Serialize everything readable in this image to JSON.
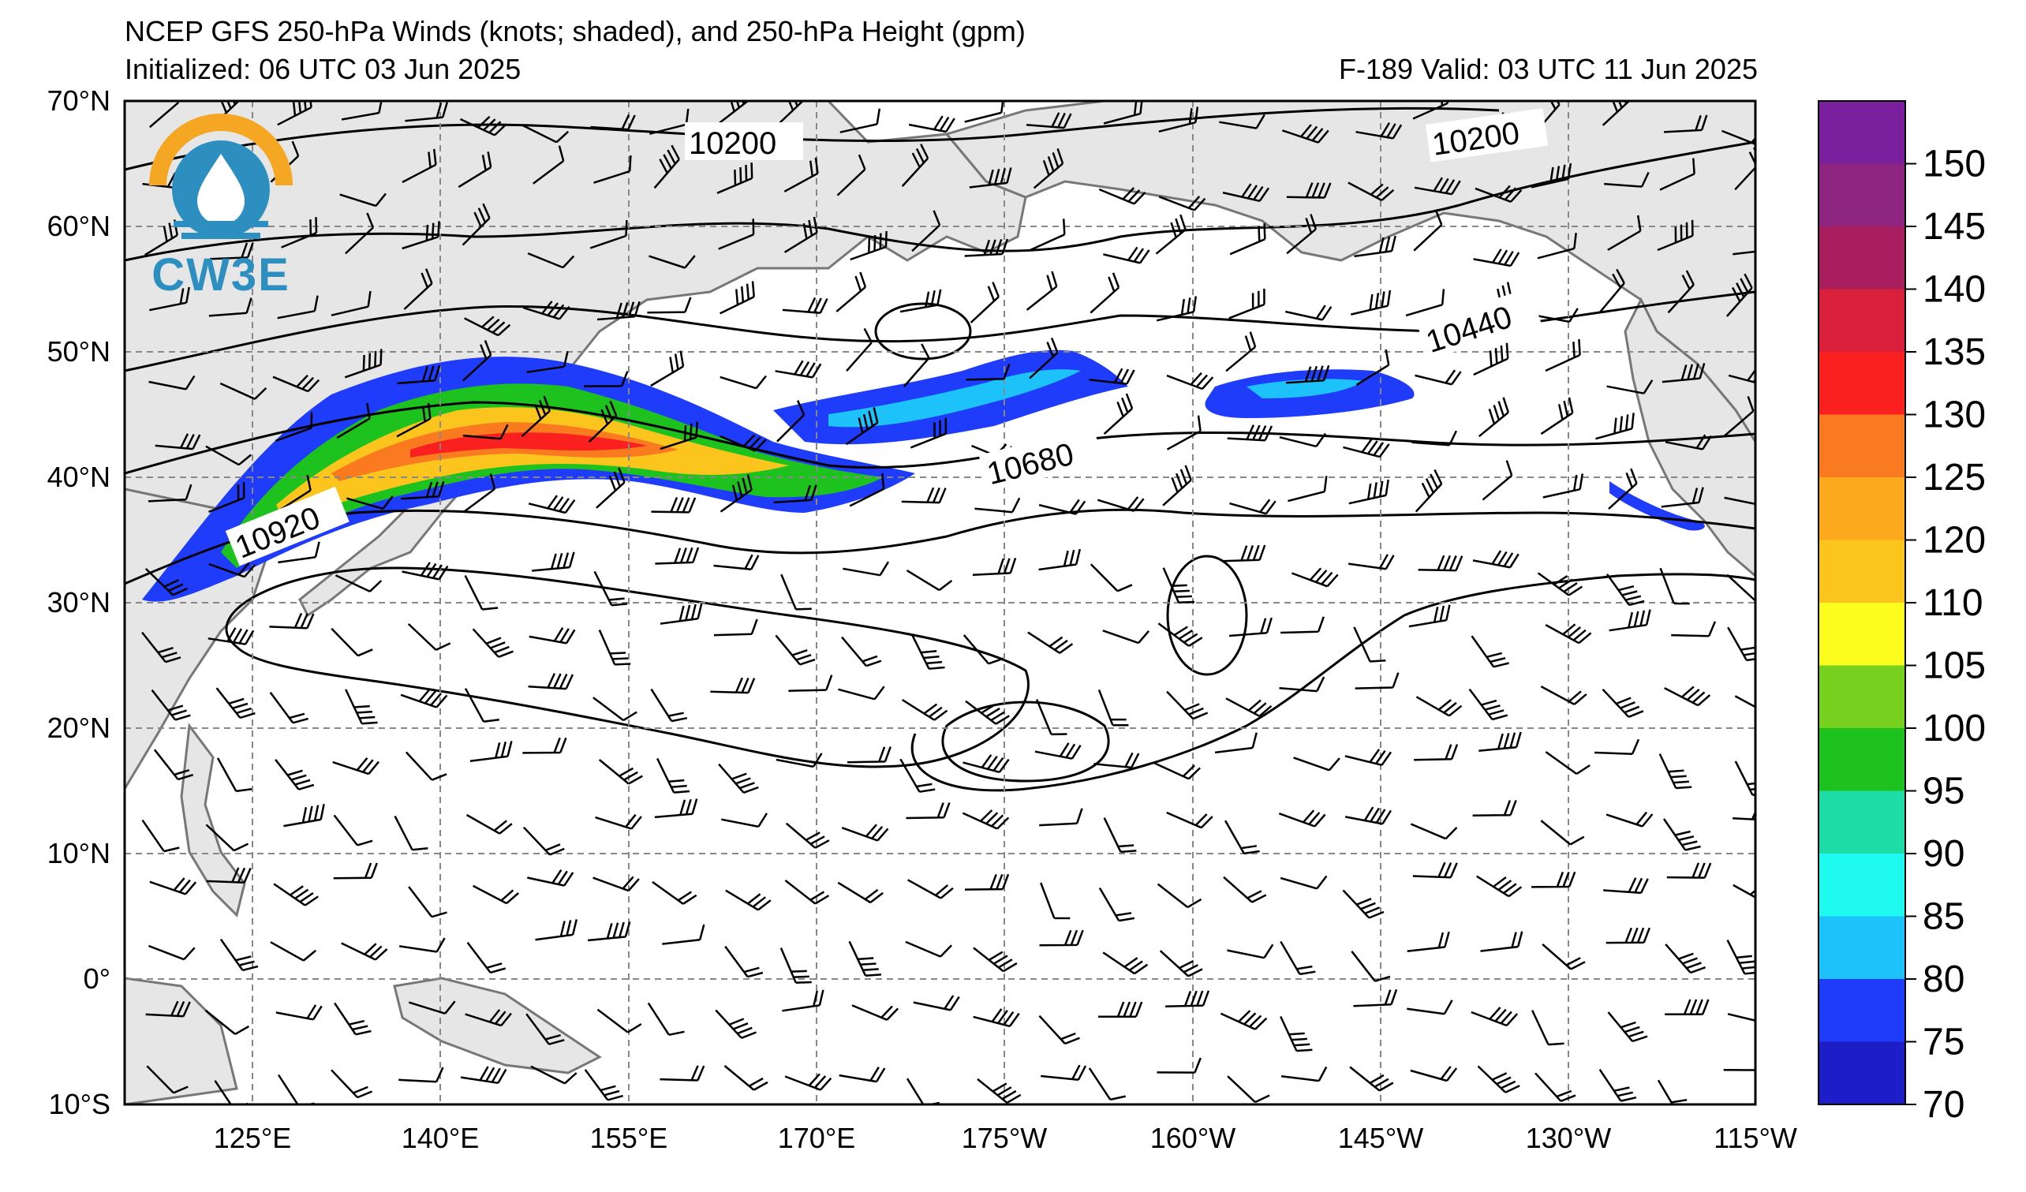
{
  "header": {
    "title": "NCEP GFS 250-hPa Winds (knots; shaded), and 250-hPa Height (gpm)",
    "initialized": "Initialized: 06 UTC 03 Jun 2025",
    "valid": "F-189  Valid: 03 UTC 11 Jun 2025"
  },
  "logo": {
    "text": "CW3E",
    "ring_color": "#f5a623",
    "drop_color": "#2c8fc0"
  },
  "axes": {
    "lat_labels": [
      "70°N",
      "60°N",
      "50°N",
      "40°N",
      "30°N",
      "20°N",
      "10°N",
      "0°",
      "10°S"
    ],
    "lon_labels": [
      "125°E",
      "140°E",
      "155°E",
      "170°E",
      "175°W",
      "160°W",
      "145°W",
      "130°W",
      "115°W"
    ]
  },
  "contour_labels": [
    "10200",
    "10200",
    "10440",
    "10680",
    "10920"
  ],
  "colorbar": {
    "labels": [
      "150",
      "145",
      "140",
      "135",
      "130",
      "125",
      "120",
      "110",
      "105",
      "100",
      "95",
      "90",
      "85",
      "80",
      "75",
      "70"
    ],
    "colors": [
      "#7a1f9e",
      "#8e2580",
      "#a91e5e",
      "#d8203a",
      "#f9201f",
      "#fa7a1f",
      "#fca91e",
      "#fcc51e",
      "#fcfc1e",
      "#77d01e",
      "#1ec21e",
      "#1edca6",
      "#1efaf0",
      "#1ec2fa",
      "#1e3cfa",
      "#1e1ec8"
    ]
  },
  "legend": {
    "unit": "knots"
  }
}
